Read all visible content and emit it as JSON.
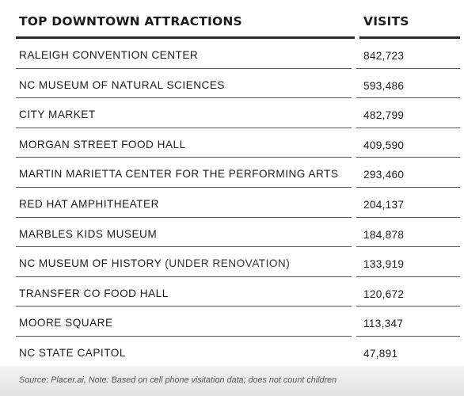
{
  "header": {
    "attraction_label": "TOP DOWNTOWN ATTRACTIONS",
    "visits_label": "VISITS"
  },
  "rows": [
    {
      "name": "RALEIGH CONVENTION CENTER",
      "note": "",
      "visits": "842,723"
    },
    {
      "name": "NC MUSEUM OF NATURAL SCIENCES",
      "note": "",
      "visits": "593,486"
    },
    {
      "name": "CITY MARKET",
      "note": "",
      "visits": "482,799"
    },
    {
      "name": "MORGAN STREET FOOD HALL",
      "note": "",
      "visits": "409,590"
    },
    {
      "name": "MARTIN MARIETTA CENTER FOR THE PERFORMING ARTS",
      "note": "",
      "visits": "293,460"
    },
    {
      "name": "RED HAT AMPHITHEATER",
      "note": "",
      "visits": "204,137"
    },
    {
      "name": "MARBLES KIDS MUSEUM",
      "note": "",
      "visits": "184,878"
    },
    {
      "name": "NC MUSEUM OF HISTORY",
      "note": "(UNDER RENOVATION)",
      "visits": "133,919"
    },
    {
      "name": "TRANSFER CO FOOD HALL",
      "note": "",
      "visits": "120,672"
    },
    {
      "name": "MOORE SQUARE",
      "note": "",
      "visits": "113,347"
    },
    {
      "name": "NC STATE CAPITOL",
      "note": "",
      "visits": "47,891"
    }
  ],
  "footer": {
    "source": "Source: Placer.ai, Note: Based on cell phone visitation data; does not count children"
  }
}
